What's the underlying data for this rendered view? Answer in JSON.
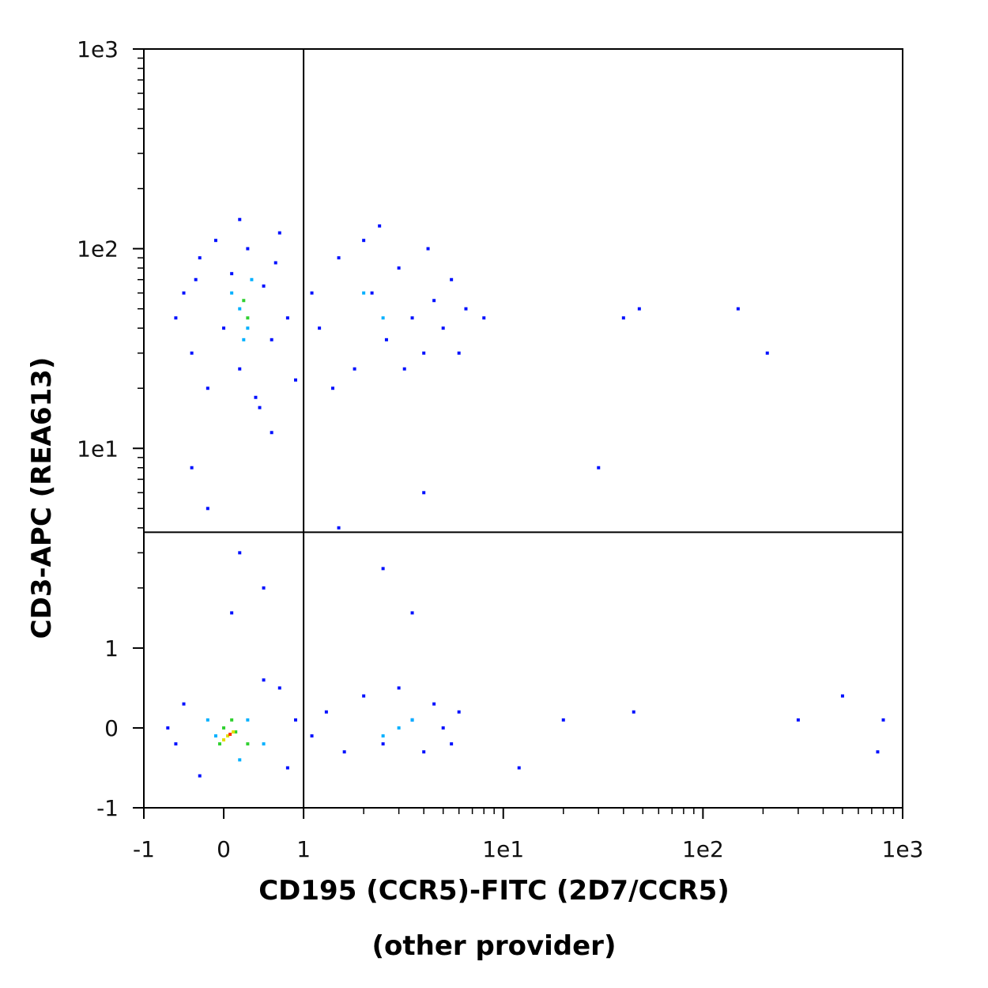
{
  "chart_data": {
    "type": "scatter",
    "xlabel": "CD195 (CCR5)-FITC (2D7/CCR5)",
    "xlabel_note": "(other provider)",
    "ylabel": "CD3-APC (REA613)",
    "xscale": "biex",
    "yscale": "biex",
    "xlim": [
      -1,
      1000
    ],
    "ylim": [
      -1,
      1000
    ],
    "xticks": [
      -1,
      0,
      1,
      {
        "value": 10,
        "label": "1e1"
      },
      {
        "value": 100,
        "label": "1e2"
      },
      {
        "value": 1000,
        "label": "1e3"
      }
    ],
    "yticks": [
      -1,
      0,
      1,
      {
        "value": 10,
        "label": "1e1"
      },
      {
        "value": 100,
        "label": "1e2"
      },
      {
        "value": 1000,
        "label": "1e3"
      }
    ],
    "xminorticks": [
      2,
      3,
      4,
      5,
      6,
      7,
      8,
      9,
      20,
      30,
      40,
      50,
      60,
      70,
      80,
      90,
      200,
      300,
      400,
      500,
      600,
      700,
      800,
      900
    ],
    "yminorticks": [
      2,
      3,
      4,
      5,
      6,
      7,
      8,
      9,
      20,
      30,
      40,
      50,
      60,
      70,
      80,
      90,
      200,
      300,
      400,
      500,
      600,
      700,
      800,
      900
    ],
    "gates": {
      "x": 1,
      "y": 3.8
    },
    "series": [
      {
        "color": "#0010ff",
        "x": [
          -0.5,
          -0.4,
          -0.3,
          -0.2,
          -0.1,
          0,
          0.1,
          0.2,
          0.3,
          0.4,
          0.5,
          0.6,
          0.7,
          0.8,
          0.9,
          -0.6,
          0.2,
          0.45,
          -0.35,
          0.65,
          1.2,
          1.5,
          1.8,
          2.2,
          2.6,
          3,
          3.5,
          4,
          4.5,
          5,
          5.5,
          1.4,
          2,
          3.2,
          6.5,
          8,
          2.4,
          1.1,
          4.2,
          6,
          -0.6,
          -0.5,
          0.8,
          0.7,
          -0.3,
          0.5,
          1.3,
          1.6,
          2,
          2.5,
          3,
          3.5,
          4,
          4.5,
          5,
          5.5,
          6,
          1.1,
          0.9,
          -0.7,
          0.2,
          0.5,
          -0.2,
          1.5,
          2.5,
          3.5,
          0.1,
          4,
          -0.4,
          0.6,
          30,
          40,
          48,
          150,
          210,
          12,
          20,
          45,
          300,
          500,
          800,
          750
        ],
        "values": [
          60,
          30,
          90,
          20,
          110,
          40,
          75,
          25,
          100,
          18,
          65,
          35,
          120,
          45,
          22,
          45,
          140,
          16,
          70,
          85,
          40,
          90,
          25,
          60,
          35,
          80,
          45,
          30,
          55,
          40,
          70,
          20,
          110,
          25,
          50,
          45,
          130,
          60,
          100,
          30,
          -0.2,
          0.3,
          -0.5,
          0.5,
          -0.6,
          0.6,
          0.2,
          -0.3,
          0.4,
          -0.2,
          0.5,
          0.1,
          -0.3,
          0.3,
          0,
          -0.2,
          0.2,
          -0.1,
          0.1,
          0,
          3,
          2,
          5,
          4,
          2.5,
          1.5,
          1.5,
          6,
          8,
          12,
          8,
          45,
          50,
          50,
          30,
          -0.5,
          0.1,
          0.2,
          0.1,
          0.4,
          0.1,
          -0.3
        ]
      },
      {
        "color": "#00b0ff",
        "x": [
          0.2,
          0.3,
          0.1,
          0.35,
          0.25,
          -0.1,
          0.3,
          0.5,
          -0.2,
          0.2,
          3,
          3.5,
          2.5,
          2,
          2.5
        ],
        "values": [
          50,
          40,
          60,
          70,
          35,
          -0.1,
          0.1,
          -0.2,
          0.1,
          -0.4,
          0,
          0.1,
          -0.1,
          60,
          45
        ]
      },
      {
        "color": "#30d030",
        "x": [
          0.25,
          0.3,
          0,
          0.15,
          0.3,
          -0.05,
          0.1
        ],
        "values": [
          55,
          45,
          0,
          -0.05,
          -0.2,
          -0.2,
          0.1
        ]
      },
      {
        "color": "#e0e000",
        "x": [
          0.05,
          0.12,
          0
        ],
        "values": [
          -0.1,
          -0.05,
          -0.15
        ]
      },
      {
        "color": "#ff3000",
        "x": [
          0.08
        ],
        "values": [
          -0.08
        ]
      }
    ]
  }
}
